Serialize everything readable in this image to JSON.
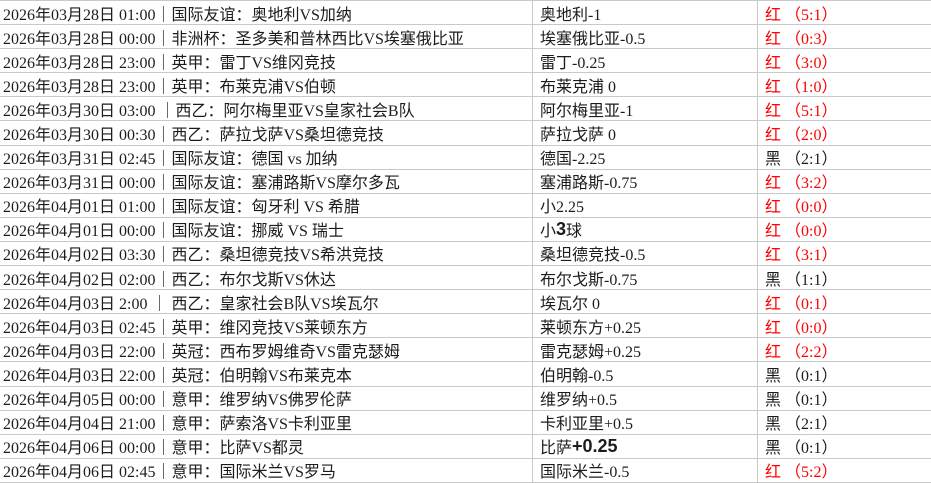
{
  "colors": {
    "red_result": "#ff0000",
    "black_result": "#1c1c1c",
    "border": "#c9c9c9",
    "background": "#ffffff"
  },
  "table": {
    "rows": [
      {
        "left": "2026年03月28日 01:00｜国际友谊：奥地利VS加纳",
        "handicap": "奥地利-1",
        "result": "红 （5:1）",
        "color": "red"
      },
      {
        "left": "2026年03月28日 00:00｜非洲杯：圣多美和普林西比VS埃塞俄比亚",
        "handicap": "埃塞俄比亚-0.5",
        "result": "红 （0:3）",
        "color": "red"
      },
      {
        "left": "2026年03月28日 23:00｜英甲：雷丁VS维冈竞技",
        "handicap": "雷丁-0.25",
        "result": "红 （3:0）",
        "color": "red"
      },
      {
        "left": "2026年03月28日 23:00｜英甲：布莱克浦VS伯顿",
        "handicap": "布莱克浦 0",
        "result": "红 （1:0）",
        "color": "red"
      },
      {
        "left": "2026年03月30日 03:00 ｜西乙：阿尔梅里亚VS皇家社会B队",
        "handicap": "阿尔梅里亚-1",
        "result": "红 （5:1）",
        "color": "red"
      },
      {
        "left": "2026年03月30日 00:30｜西乙：萨拉戈萨VS桑坦德竞技",
        "handicap": "萨拉戈萨 0",
        "result": "红 （2:0）",
        "color": "red"
      },
      {
        "left": "2026年03月31日 02:45｜国际友谊：德国 vs 加纳",
        "handicap": "德国-2.25",
        "result": "黑 （2:1）",
        "color": "black"
      },
      {
        "left": "2026年03月31日 00:00｜国际友谊：塞浦路斯VS摩尔多瓦",
        "handicap": "塞浦路斯-0.75",
        "result": "红 （3:2）",
        "color": "red"
      },
      {
        "left": "2026年04月01日 01:00｜国际友谊：匈牙利 VS 希腊",
        "handicap": "小2.25",
        "result": "红 （0:0）",
        "color": "red"
      },
      {
        "left": "2026年04月01日 00:00｜国际友谊：挪威 VS 瑞士",
        "handicap": "小",
        "handicap_big": "3",
        "handicap_tail": "球",
        "result": "红 （0:0）",
        "color": "red"
      },
      {
        "left": "2026年04月02日 03:30｜西乙：桑坦德竞技VS希洪竞技",
        "handicap": "桑坦德竞技-0.5",
        "result": "红 （3:1）",
        "color": "red"
      },
      {
        "left": "2026年04月02日 02:00｜西乙：布尔戈斯VS休达",
        "handicap": "布尔戈斯-0.75",
        "result": "黑 （1:1）",
        "color": "black"
      },
      {
        "left": "2026年04月03日 2:00 ｜ 西乙：皇家社会B队VS埃瓦尔",
        "handicap": "埃瓦尔 0",
        "result": "红 （0:1）",
        "color": "red"
      },
      {
        "left": "2026年04月03日 02:45｜英甲：维冈竞技VS莱顿东方",
        "handicap": "莱顿东方+0.25",
        "result": "红 （0:0）",
        "color": "red"
      },
      {
        "left": "2026年04月03日 22:00｜英冠：西布罗姆维奇VS雷克瑟姆",
        "handicap": "雷克瑟姆+0.25",
        "result": "红 （2:2）",
        "color": "red"
      },
      {
        "left": "2026年04月03日 22:00｜英冠：伯明翰VS布莱克本",
        "handicap": "伯明翰-0.5",
        "result": "黑 （0:1）",
        "color": "black"
      },
      {
        "left": "2026年04月05日 00:00｜意甲：维罗纳VS佛罗伦萨",
        "handicap": "维罗纳+0.5",
        "result": "黑 （0:1）",
        "color": "black"
      },
      {
        "left": "2026年04月04日 21:00｜意甲：萨索洛VS卡利亚里",
        "handicap": "卡利亚里+0.5",
        "result": "黑 （2:1）",
        "color": "black"
      },
      {
        "left": "2026年04月06日 00:00｜意甲：比萨VS都灵",
        "handicap": "比萨",
        "handicap_big": "+0.25",
        "result": "黑 （0:1）",
        "color": "black"
      },
      {
        "left": "2026年04月06日 02:45｜意甲：国际米兰VS罗马",
        "handicap": "国际米兰-0.5",
        "result": "红 （5:2）",
        "color": "red"
      }
    ]
  }
}
